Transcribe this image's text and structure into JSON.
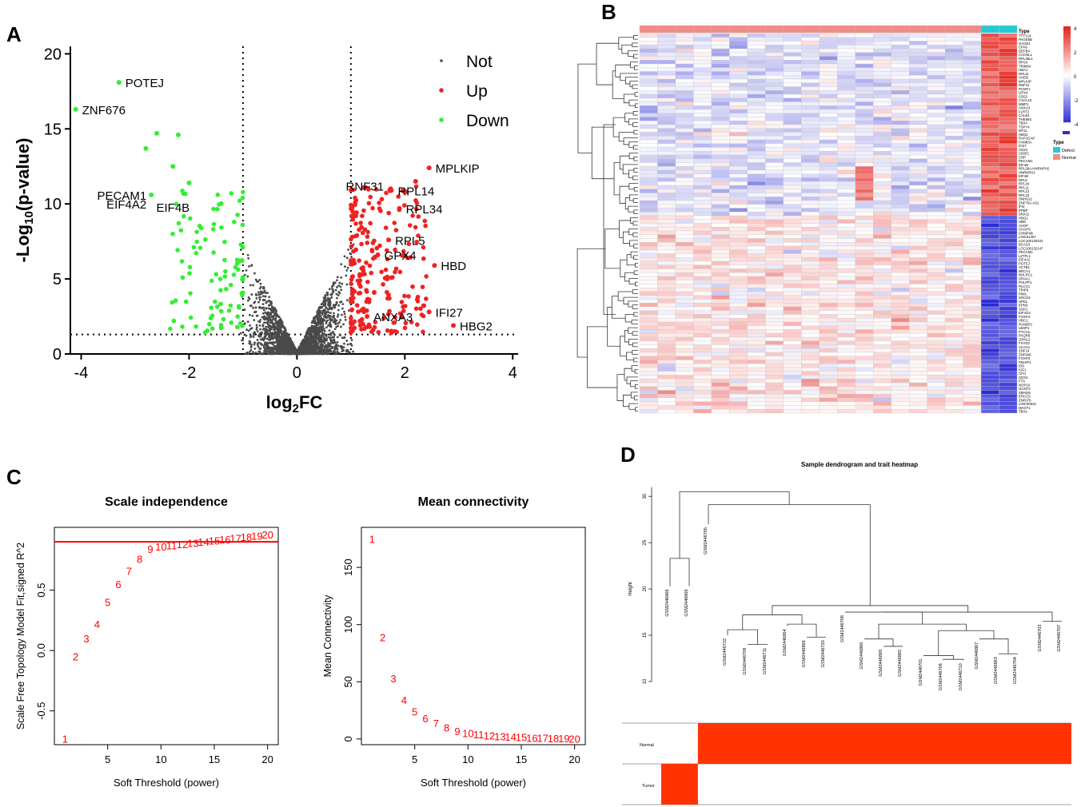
{
  "panel_letters": {
    "a": "A",
    "b": "B",
    "c": "C",
    "d": "D"
  },
  "colors": {
    "not": "#4a4a4a",
    "up": "#ee2222",
    "down": "#33ee33",
    "heat_high": "#e8251e",
    "heat_low": "#2b2bd6",
    "heat_mid": "#ffffff",
    "defect": "#22cbd6",
    "normal": "#f08c84",
    "wgcna": "#ff0000",
    "trait": "#ff3300"
  },
  "chart_data": [
    {
      "id": "A",
      "type": "scatter",
      "title": "",
      "xlabel": "log2FC",
      "ylabel": "-Log10(p-value)",
      "xlim": [
        -4.2,
        4.1
      ],
      "ylim": [
        0,
        20.5
      ],
      "xticks": [
        -4,
        -2,
        0,
        2,
        4
      ],
      "yticks": [
        0,
        5,
        10,
        15,
        20
      ],
      "thresholds": {
        "fc": [
          -1,
          1
        ],
        "p": 1.3
      },
      "legend": [
        "Not",
        "Up",
        "Down"
      ],
      "labels": [
        {
          "text": "POTEJ",
          "x": -3.3,
          "y": 18.1,
          "side": "right"
        },
        {
          "text": "ZNF676",
          "x": -4.1,
          "y": 16.3,
          "side": "right"
        },
        {
          "text": "PECAM1",
          "x": -2.7,
          "y": 10.6,
          "side": "left"
        },
        {
          "text": "EIF4A2",
          "x": -2.7,
          "y": 10.0,
          "side": "left"
        },
        {
          "text": "EIF4B",
          "x": -1.9,
          "y": 9.8,
          "side": "left"
        },
        {
          "text": "RNF31",
          "x": 1.7,
          "y": 11.2,
          "side": "left"
        },
        {
          "text": "MPLKIP",
          "x": 2.45,
          "y": 12.4,
          "side": "right"
        },
        {
          "text": "RPL14",
          "x": 1.75,
          "y": 10.9,
          "side": "right"
        },
        {
          "text": "RPL34",
          "x": 1.9,
          "y": 9.7,
          "side": "right"
        },
        {
          "text": "RPL5",
          "x": 1.7,
          "y": 7.6,
          "side": "right"
        },
        {
          "text": "GPX4",
          "x": 1.5,
          "y": 6.6,
          "side": "right"
        },
        {
          "text": "HBD",
          "x": 2.55,
          "y": 5.9,
          "side": "right"
        },
        {
          "text": "IFI27",
          "x": 2.45,
          "y": 2.8,
          "side": "right"
        },
        {
          "text": "ANXA3",
          "x": 1.3,
          "y": 2.5,
          "side": "right"
        },
        {
          "text": "HBG2",
          "x": 2.9,
          "y": 1.9,
          "side": "right"
        }
      ]
    },
    {
      "id": "B",
      "type": "heatmap",
      "rows": 100,
      "columns": 21,
      "annotation_title": "Type",
      "groups": [
        {
          "name": "Defect",
          "count": 2
        },
        {
          "name": "Normal",
          "count": 19
        }
      ],
      "color_scale": {
        "ticks": [
          4,
          2,
          0,
          -2,
          -4
        ],
        "range": [
          -4,
          4
        ]
      },
      "genes": [
        "TTTY14",
        "PAGE5B",
        "GAGE1",
        "CPA6",
        "DEFB4",
        "CACNL1",
        "RPL36L1",
        "RPS4",
        "TRIM54",
        "HBA1",
        "RPL11",
        "CHEB",
        "MPLKIP",
        "RNF31",
        "PCMT1",
        "GPX4",
        "CD52",
        "CXCL10",
        "MMP1",
        "ANXA3",
        "FLRT2",
        "CALB1",
        "THEMIS",
        "TBX4",
        "TSPY4",
        "MT2L",
        "HBG2",
        "RAP1GAP",
        "FAM83A",
        "IFI27",
        "CD24",
        "CIDEC",
        "CRP",
        "PECAM1",
        "EIF4B",
        "RPL36A-HNRNPH2",
        "HNRNPH2",
        "EIF4B",
        "RPL5",
        "RPL34",
        "RPL11",
        "RPL14",
        "RPL23",
        "SNHG21",
        "ZNF75A-AS1",
        "IFI3",
        "PPBP",
        "SNX11",
        "HBG2",
        "HBD",
        "AHSP",
        "CHAPS",
        "CHMP4B",
        "LINC01267",
        "LOC100130331",
        "BCAS3",
        "LOC100132147",
        "PECAM1",
        "LZTFL1",
        "EIF4A2",
        "POTEJ",
        "ACTB1",
        "BRCA1",
        "NHLRC1",
        "OR4A1",
        "PHLPP1",
        "PLCG1",
        "TRIP6",
        "PIM1",
        "SOCS3",
        "HPDL",
        "EPN3",
        "SGK1",
        "EIF4G2",
        "FOXP4",
        "HBC1",
        "RANBP1",
        "LBSP1",
        "PTCH1",
        "PAQR8",
        "GRHL2",
        "FXYD2",
        "ACAA1",
        "ZNF19",
        "ZNF846",
        "FOXP3",
        "PMAIP1",
        "IDS",
        "IGF1",
        "CFH",
        "SOX2",
        "FTX",
        "NOP16",
        "GCNT2",
        "SMAD6",
        "ERCC5",
        "ZNF676",
        "LINC00910",
        "MAGT1",
        "TBX2"
      ],
      "row_tree": "hierarchical clustering dendrogram"
    },
    {
      "id": "C1",
      "type": "scatter",
      "title": "Scale independence",
      "xlabel": "Soft Threshold (power)",
      "ylabel": "Scale Free Topology Model Fit,signed R^2",
      "xlim": [
        0,
        21
      ],
      "ylim": [
        -0.78,
        1.02
      ],
      "xticks": [
        5,
        10,
        15,
        20
      ],
      "yticks": [
        -0.5,
        0.0,
        0.5
      ],
      "h_line": 0.9,
      "x": [
        1,
        2,
        3,
        4,
        5,
        6,
        7,
        8,
        9,
        10,
        11,
        12,
        13,
        14,
        15,
        16,
        17,
        18,
        19,
        20
      ],
      "y": [
        -0.73,
        -0.05,
        0.1,
        0.22,
        0.4,
        0.55,
        0.66,
        0.76,
        0.84,
        0.86,
        0.87,
        0.88,
        0.89,
        0.9,
        0.91,
        0.92,
        0.93,
        0.94,
        0.95,
        0.96
      ]
    },
    {
      "id": "C2",
      "type": "scatter",
      "title": "Mean connectivity",
      "xlabel": "Soft Threshold (power)",
      "ylabel": "Mean Connectivity",
      "xlim": [
        0,
        21
      ],
      "ylim": [
        -5,
        185
      ],
      "xticks": [
        5,
        10,
        15,
        20
      ],
      "yticks": [
        0,
        50,
        100,
        150
      ],
      "x": [
        1,
        2,
        3,
        4,
        5,
        6,
        7,
        8,
        9,
        10,
        11,
        12,
        13,
        14,
        15,
        16,
        17,
        18,
        19,
        20
      ],
      "y": [
        175,
        89,
        53,
        34,
        24,
        18,
        14,
        10,
        7,
        5,
        4,
        3,
        2.5,
        2,
        1.5,
        1,
        0.8,
        0.6,
        0.5,
        0.4
      ]
    },
    {
      "id": "D",
      "type": "dendrogram",
      "title": "Sample dendrogram and trait heatmap",
      "ylabel": "Height",
      "ylim": [
        10,
        32
      ],
      "yticks": [
        10,
        15,
        20,
        25,
        30
      ],
      "samples": [
        "GSM2446866",
        "GSM2446868",
        "GSM2446705",
        "GSM2446722",
        "GSM2446709",
        "GSM2446711",
        "GSM2446864",
        "GSM2446866",
        "GSM2446720",
        "GSM2446706",
        "GSM2446866",
        "GSM2446869",
        "GSM2446865",
        "GSM2446701",
        "GSM2446708",
        "GSM2446710",
        "GSM2446867",
        "GSM2446863",
        "GSM2446704",
        "GSM2446703",
        "GSM2446707"
      ],
      "traits": [
        {
          "name": "Normal",
          "tumor_count": 0,
          "normal_start": 2
        },
        {
          "name": "Tumor",
          "tumor_count": 2
        }
      ]
    }
  ]
}
